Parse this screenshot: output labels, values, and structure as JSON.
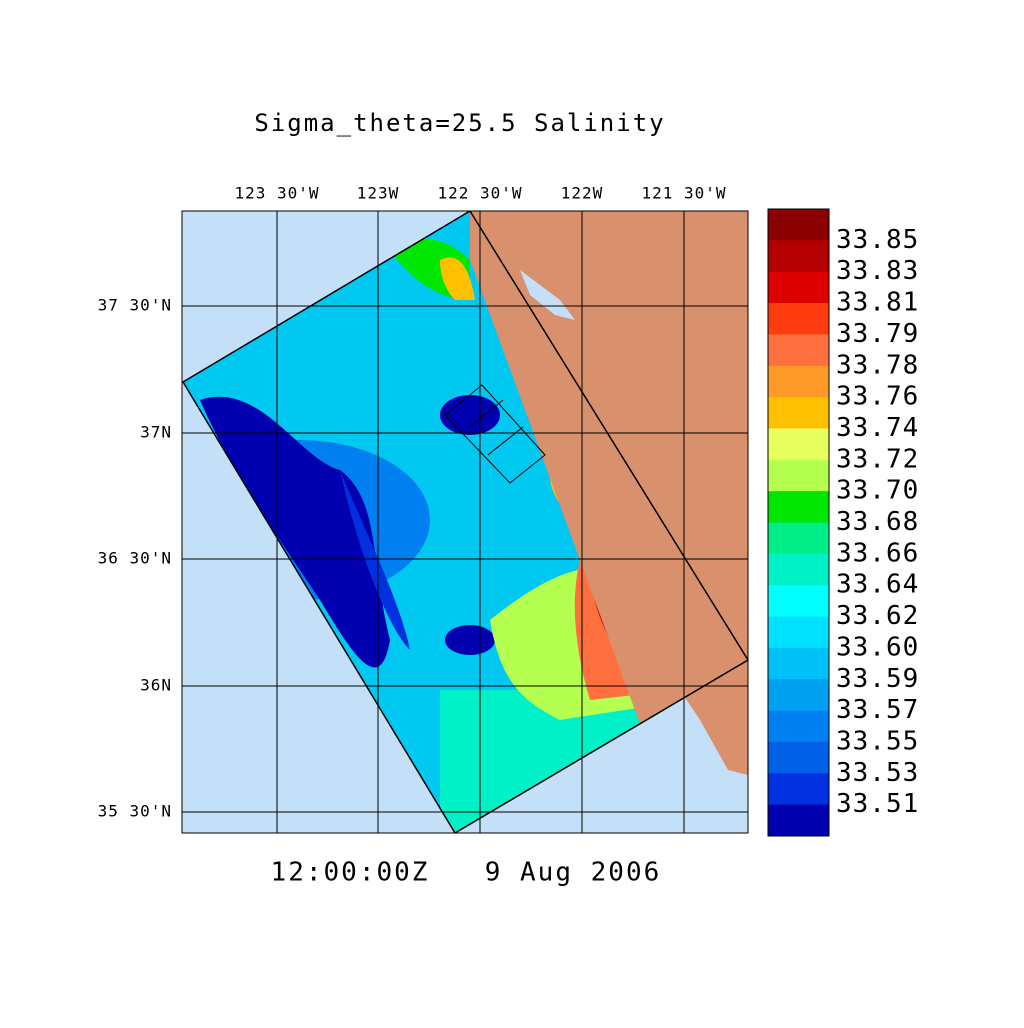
{
  "title": "Sigma_theta=25.5 Salinity",
  "map": {
    "lon_ticks": [
      "123 30'W",
      "123W",
      "122 30'W",
      "122W",
      "121 30'W"
    ],
    "lat_ticks": [
      "37 30'N",
      "37N",
      "36 30'N",
      "36N",
      "35 30'N"
    ]
  },
  "colorbar": {
    "labels": [
      "33.85",
      "33.83",
      "33.81",
      "33.79",
      "33.78",
      "33.76",
      "33.74",
      "33.72",
      "33.70",
      "33.68",
      "33.66",
      "33.64",
      "33.62",
      "33.60",
      "33.59",
      "33.57",
      "33.55",
      "33.53",
      "33.51"
    ],
    "colors": [
      "#8b0000",
      "#b40000",
      "#dc0000",
      "#ff3c10",
      "#ff7040",
      "#ff9a28",
      "#ffc000",
      "#e8ff60",
      "#b4ff50",
      "#00e600",
      "#00ee88",
      "#00f0c8",
      "#00ffff",
      "#00e0ff",
      "#00c0f8",
      "#00a0f0",
      "#0080f0",
      "#0060e8",
      "#0030e0",
      "#0000b0"
    ]
  },
  "footer": {
    "time": "12:00:00Z",
    "date": "9 Aug 2006"
  }
}
